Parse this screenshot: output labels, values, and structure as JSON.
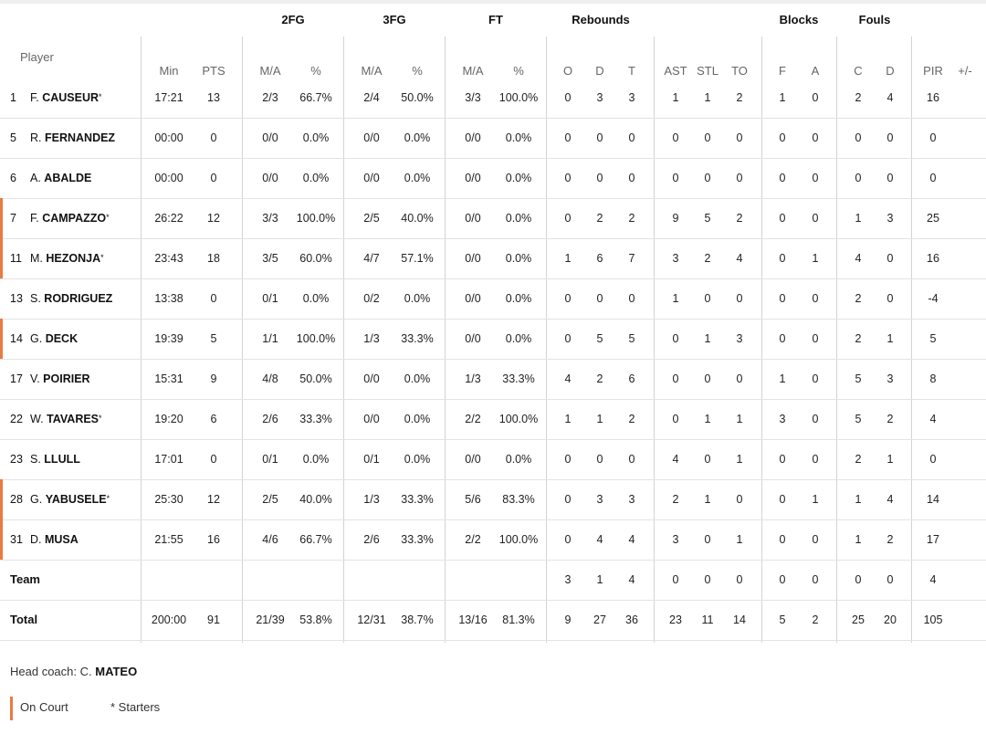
{
  "groups": [
    "2FG",
    "3FG",
    "FT",
    "Rebounds",
    "Blocks",
    "Fouls"
  ],
  "player_header": "Player",
  "subheaders": [
    "Min",
    "PTS",
    "M/A",
    "%",
    "M/A",
    "%",
    "M/A",
    "%",
    "O",
    "D",
    "T",
    "AST",
    "STL",
    "TO",
    "F",
    "A",
    "C",
    "D",
    "PIR",
    "+/-"
  ],
  "players": [
    {
      "num": "1",
      "first": "F.",
      "last": "CAUSEUR",
      "starter": true,
      "on_court": false,
      "stats": [
        "17:21",
        "13",
        "2/3",
        "66.7%",
        "2/4",
        "50.0%",
        "3/3",
        "100.0%",
        "0",
        "3",
        "3",
        "1",
        "1",
        "2",
        "1",
        "0",
        "2",
        "4",
        "16",
        ""
      ]
    },
    {
      "num": "5",
      "first": "R.",
      "last": "FERNANDEZ",
      "starter": false,
      "on_court": false,
      "stats": [
        "00:00",
        "0",
        "0/0",
        "0.0%",
        "0/0",
        "0.0%",
        "0/0",
        "0.0%",
        "0",
        "0",
        "0",
        "0",
        "0",
        "0",
        "0",
        "0",
        "0",
        "0",
        "0",
        ""
      ]
    },
    {
      "num": "6",
      "first": "A.",
      "last": "ABALDE",
      "starter": false,
      "on_court": false,
      "stats": [
        "00:00",
        "0",
        "0/0",
        "0.0%",
        "0/0",
        "0.0%",
        "0/0",
        "0.0%",
        "0",
        "0",
        "0",
        "0",
        "0",
        "0",
        "0",
        "0",
        "0",
        "0",
        "0",
        ""
      ]
    },
    {
      "num": "7",
      "first": "F.",
      "last": "CAMPAZZO",
      "starter": true,
      "on_court": true,
      "stats": [
        "26:22",
        "12",
        "3/3",
        "100.0%",
        "2/5",
        "40.0%",
        "0/0",
        "0.0%",
        "0",
        "2",
        "2",
        "9",
        "5",
        "2",
        "0",
        "0",
        "1",
        "3",
        "25",
        ""
      ]
    },
    {
      "num": "11",
      "first": "M.",
      "last": "HEZONJA",
      "starter": true,
      "on_court": true,
      "stats": [
        "23:43",
        "18",
        "3/5",
        "60.0%",
        "4/7",
        "57.1%",
        "0/0",
        "0.0%",
        "1",
        "6",
        "7",
        "3",
        "2",
        "4",
        "0",
        "1",
        "4",
        "0",
        "16",
        ""
      ]
    },
    {
      "num": "13",
      "first": "S.",
      "last": "RODRIGUEZ",
      "starter": false,
      "on_court": false,
      "stats": [
        "13:38",
        "0",
        "0/1",
        "0.0%",
        "0/2",
        "0.0%",
        "0/0",
        "0.0%",
        "0",
        "0",
        "0",
        "1",
        "0",
        "0",
        "0",
        "0",
        "2",
        "0",
        "-4",
        ""
      ]
    },
    {
      "num": "14",
      "first": "G.",
      "last": "DECK",
      "starter": false,
      "on_court": true,
      "stats": [
        "19:39",
        "5",
        "1/1",
        "100.0%",
        "1/3",
        "33.3%",
        "0/0",
        "0.0%",
        "0",
        "5",
        "5",
        "0",
        "1",
        "3",
        "0",
        "0",
        "2",
        "1",
        "5",
        ""
      ]
    },
    {
      "num": "17",
      "first": "V.",
      "last": "POIRIER",
      "starter": false,
      "on_court": false,
      "stats": [
        "15:31",
        "9",
        "4/8",
        "50.0%",
        "0/0",
        "0.0%",
        "1/3",
        "33.3%",
        "4",
        "2",
        "6",
        "0",
        "0",
        "0",
        "1",
        "0",
        "5",
        "3",
        "8",
        ""
      ]
    },
    {
      "num": "22",
      "first": "W.",
      "last": "TAVARES",
      "starter": true,
      "on_court": false,
      "stats": [
        "19:20",
        "6",
        "2/6",
        "33.3%",
        "0/0",
        "0.0%",
        "2/2",
        "100.0%",
        "1",
        "1",
        "2",
        "0",
        "1",
        "1",
        "3",
        "0",
        "5",
        "2",
        "4",
        ""
      ]
    },
    {
      "num": "23",
      "first": "S.",
      "last": "LLULL",
      "starter": false,
      "on_court": false,
      "stats": [
        "17:01",
        "0",
        "0/1",
        "0.0%",
        "0/1",
        "0.0%",
        "0/0",
        "0.0%",
        "0",
        "0",
        "0",
        "4",
        "0",
        "1",
        "0",
        "0",
        "2",
        "1",
        "0",
        ""
      ]
    },
    {
      "num": "28",
      "first": "G.",
      "last": "YABUSELE",
      "starter": true,
      "on_court": true,
      "stats": [
        "25:30",
        "12",
        "2/5",
        "40.0%",
        "1/3",
        "33.3%",
        "5/6",
        "83.3%",
        "0",
        "3",
        "3",
        "2",
        "1",
        "0",
        "0",
        "1",
        "1",
        "4",
        "14",
        ""
      ]
    },
    {
      "num": "31",
      "first": "D.",
      "last": "MUSA",
      "starter": false,
      "on_court": true,
      "stats": [
        "21:55",
        "16",
        "4/6",
        "66.7%",
        "2/6",
        "33.3%",
        "2/2",
        "100.0%",
        "0",
        "4",
        "4",
        "3",
        "0",
        "1",
        "0",
        "0",
        "1",
        "2",
        "17",
        ""
      ]
    }
  ],
  "team_row": {
    "label": "Team",
    "stats": [
      "",
      "",
      "",
      "",
      "",
      "",
      "",
      "",
      "3",
      "1",
      "4",
      "0",
      "0",
      "0",
      "0",
      "0",
      "0",
      "0",
      "4",
      ""
    ]
  },
  "total_row": {
    "label": "Total",
    "stats": [
      "200:00",
      "91",
      "21/39",
      "53.8%",
      "12/31",
      "38.7%",
      "13/16",
      "81.3%",
      "9",
      "27",
      "36",
      "23",
      "11",
      "14",
      "5",
      "2",
      "25",
      "20",
      "105",
      ""
    ]
  },
  "coach": {
    "prefix": "Head coach: C.",
    "name": "MATEO"
  },
  "legend": {
    "on_court": "On Court",
    "starters": "* Starters"
  },
  "colors": {
    "on_court": "#ec7a3f"
  }
}
